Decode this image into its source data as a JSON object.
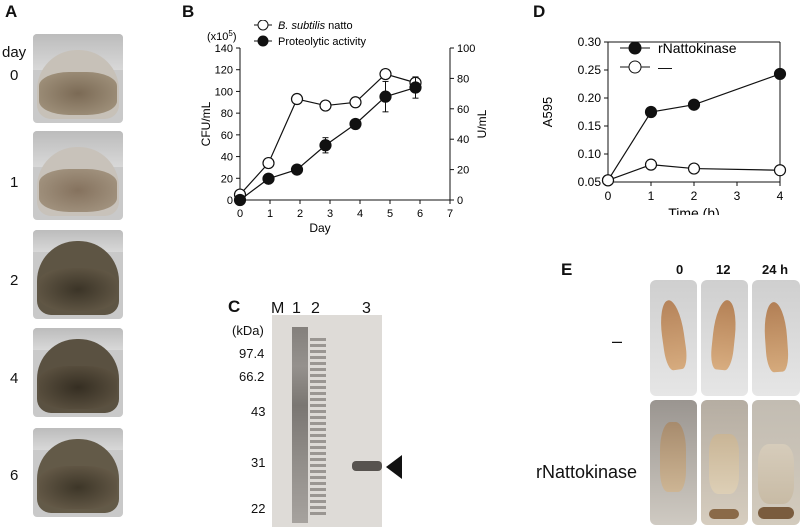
{
  "panel_a": {
    "label": "A",
    "day_header": "day",
    "days": [
      "0",
      "1",
      "2",
      "4",
      "6"
    ]
  },
  "panel_b": {
    "label": "B",
    "multiplier": "(x10",
    "multiplier_exp": "5",
    "multiplier_close": ")",
    "y_left_label": "CFU/mL",
    "y_right_label": "U/mL",
    "x_label": "Day",
    "legend": [
      {
        "name": "B. subtilis natto",
        "italic_part": "B. subtilis",
        "rest": " natto",
        "marker": "open"
      },
      {
        "name": "Proteolytic activity",
        "marker": "filled"
      }
    ]
  },
  "panel_c": {
    "label": "C",
    "lanes": [
      "M",
      "1",
      "2",
      "3"
    ],
    "unit": "(kDa)",
    "markers": [
      "97.4",
      "66.2",
      "43",
      "31",
      "22"
    ]
  },
  "panel_d": {
    "label": "D",
    "y_label": "A595",
    "x_label": "Time (h)",
    "legend": [
      {
        "name": "rNattokinase",
        "marker": "filled"
      },
      {
        "name": "—",
        "marker": "open"
      }
    ]
  },
  "panel_e": {
    "label": "E",
    "columns": [
      "0",
      "12",
      "24 h"
    ],
    "rows": [
      "–",
      "rNattokinase"
    ]
  },
  "chart_data": [
    {
      "type": "line",
      "panel": "B",
      "x": [
        0,
        1,
        2,
        3,
        4,
        5,
        6
      ],
      "xlim": [
        0,
        7
      ],
      "xlabel": "Day",
      "ylabel": "CFU/mL",
      "ylim": [
        0,
        140
      ],
      "y2label": "U/mL",
      "y2lim": [
        0,
        100
      ],
      "series": [
        {
          "name": "B. subtilis natto",
          "axis": "left",
          "marker": "open",
          "x": [
            0,
            0.95,
            1.9,
            2.85,
            3.85,
            4.85,
            5.85
          ],
          "values": [
            5,
            34,
            93,
            87,
            90,
            116,
            108
          ],
          "errors": [
            0,
            0,
            0,
            0,
            0,
            0,
            5
          ]
        },
        {
          "name": "Proteolytic activity",
          "axis": "right",
          "marker": "filled",
          "x": [
            0,
            0.95,
            1.9,
            2.85,
            3.85,
            4.85,
            5.85
          ],
          "values": [
            0,
            14,
            20,
            36,
            50,
            68,
            74
          ],
          "errors": [
            0,
            0,
            0,
            5,
            3,
            10,
            7
          ]
        }
      ]
    },
    {
      "type": "line",
      "panel": "D",
      "x": [
        0,
        1,
        2,
        4
      ],
      "xlim": [
        0,
        4
      ],
      "xlabel": "Time (h)",
      "ylabel": "A595",
      "ylim": [
        0.05,
        0.3
      ],
      "series": [
        {
          "name": "rNattokinase",
          "marker": "filled",
          "values": [
            0.053,
            0.175,
            0.188,
            0.243
          ]
        },
        {
          "name": "—",
          "marker": "open",
          "values": [
            0.053,
            0.081,
            0.074,
            0.071
          ]
        }
      ]
    }
  ]
}
